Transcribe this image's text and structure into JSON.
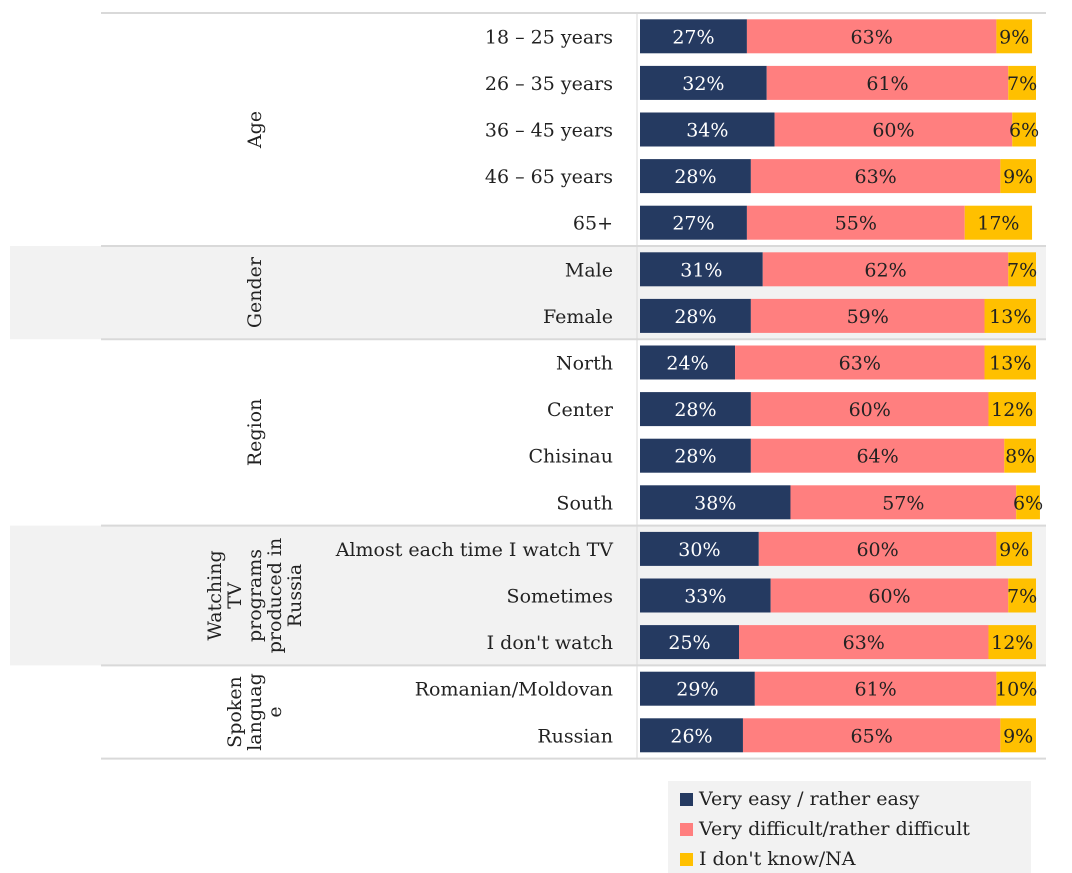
{
  "chart_data": {
    "type": "bar",
    "stacked": true,
    "orientation": "horizontal",
    "percent": true,
    "xlim": [
      0,
      100
    ],
    "colors": {
      "easy": "#253a61",
      "difficult": "#ff7f7f",
      "na": "#ffc000"
    },
    "series_names": [
      "Very easy / rather easy",
      "Very difficult/rather difficult",
      "I don't know/NA"
    ],
    "groups": [
      {
        "name": "Age",
        "rows": [
          {
            "label": "18 – 25 years",
            "values": [
              27,
              63,
              9
            ]
          },
          {
            "label": "26 – 35 years",
            "values": [
              32,
              61,
              7
            ]
          },
          {
            "label": "36 – 45 years",
            "values": [
              34,
              60,
              6
            ]
          },
          {
            "label": "46 – 65 years",
            "values": [
              28,
              63,
              9
            ]
          },
          {
            "label": "65+",
            "values": [
              27,
              55,
              17
            ]
          }
        ]
      },
      {
        "name": "Gender",
        "rows": [
          {
            "label": "Male",
            "values": [
              31,
              62,
              7
            ]
          },
          {
            "label": "Female",
            "values": [
              28,
              59,
              13
            ]
          }
        ]
      },
      {
        "name": "Region",
        "rows": [
          {
            "label": "North",
            "values": [
              24,
              63,
              13
            ]
          },
          {
            "label": "Center",
            "values": [
              28,
              60,
              12
            ]
          },
          {
            "label": "Chisinau",
            "values": [
              28,
              64,
              8
            ]
          },
          {
            "label": "South",
            "values": [
              38,
              57,
              6
            ]
          }
        ]
      },
      {
        "name": "Watching TV programs produced in Russia",
        "name_lines": [
          "Watching",
          "TV",
          "programs",
          "produced in",
          "Russia"
        ],
        "rows": [
          {
            "label": "Almost each time I watch TV",
            "values": [
              30,
              60,
              9
            ]
          },
          {
            "label": "Sometimes",
            "values": [
              33,
              60,
              7
            ]
          },
          {
            "label": "I don't watch",
            "values": [
              25,
              63,
              12
            ]
          }
        ]
      },
      {
        "name": "Spoken language",
        "name_lines": [
          "Spoken",
          "languag",
          "e"
        ],
        "rows": [
          {
            "label": "Romanian/Moldovan",
            "values": [
              29,
              61,
              10
            ]
          },
          {
            "label": "Russian",
            "values": [
              26,
              65,
              9
            ]
          }
        ]
      }
    ]
  },
  "legend": {
    "items": [
      {
        "label": "Very easy / rather easy",
        "color": "#253a61"
      },
      {
        "label": "Very difficult/rather difficult",
        "color": "#ff7f7f"
      },
      {
        "label": "I don't know/NA",
        "color": "#ffc000"
      }
    ]
  }
}
